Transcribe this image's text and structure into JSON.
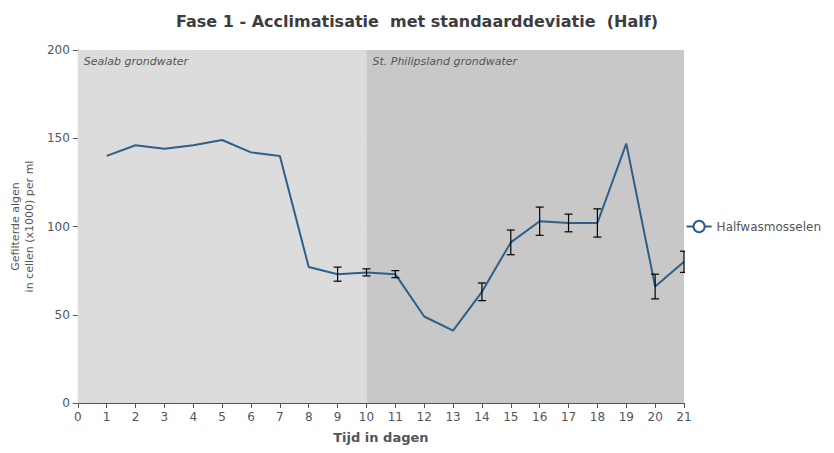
{
  "chart_data": {
    "type": "line",
    "title": "Fase 1 - Acclimatisatie  met standaarddeviatie  (Half)",
    "xlabel": "Tijd in dagen",
    "ylabel": "Gefilterde algen\nin cellen (x1000) per ml",
    "x": [
      1,
      2,
      3,
      4,
      5,
      6,
      7,
      8,
      9,
      10,
      11,
      12,
      13,
      14,
      15,
      16,
      17,
      18,
      19,
      20,
      21
    ],
    "series": [
      {
        "name": "Halfwasmosselen",
        "color": "#2e5f8a",
        "values": [
          140,
          146,
          144,
          146,
          149,
          142,
          140,
          77,
          73,
          74,
          73,
          49,
          41,
          63,
          91,
          103,
          102,
          102,
          147,
          66,
          80
        ],
        "yerr": [
          null,
          null,
          null,
          null,
          null,
          null,
          null,
          null,
          4,
          2,
          2,
          null,
          null,
          5,
          7,
          8,
          5,
          8,
          null,
          7,
          6
        ]
      }
    ],
    "regions": [
      {
        "label": "Sealab grondwater",
        "xmin": 0,
        "xmax": 10,
        "color": "#dcdcdc"
      },
      {
        "label": "St. Philipsland grondwater",
        "xmin": 10,
        "xmax": 21,
        "color": "#c8c8c8"
      }
    ],
    "xlim": [
      0,
      21
    ],
    "xticks": [
      0,
      1,
      2,
      3,
      4,
      5,
      6,
      7,
      8,
      9,
      10,
      11,
      12,
      13,
      14,
      15,
      16,
      17,
      18,
      19,
      20,
      21
    ],
    "ylim": [
      0,
      200
    ],
    "yticks": [
      0,
      50,
      100,
      150,
      200
    ],
    "grid": true,
    "legend": "right"
  }
}
